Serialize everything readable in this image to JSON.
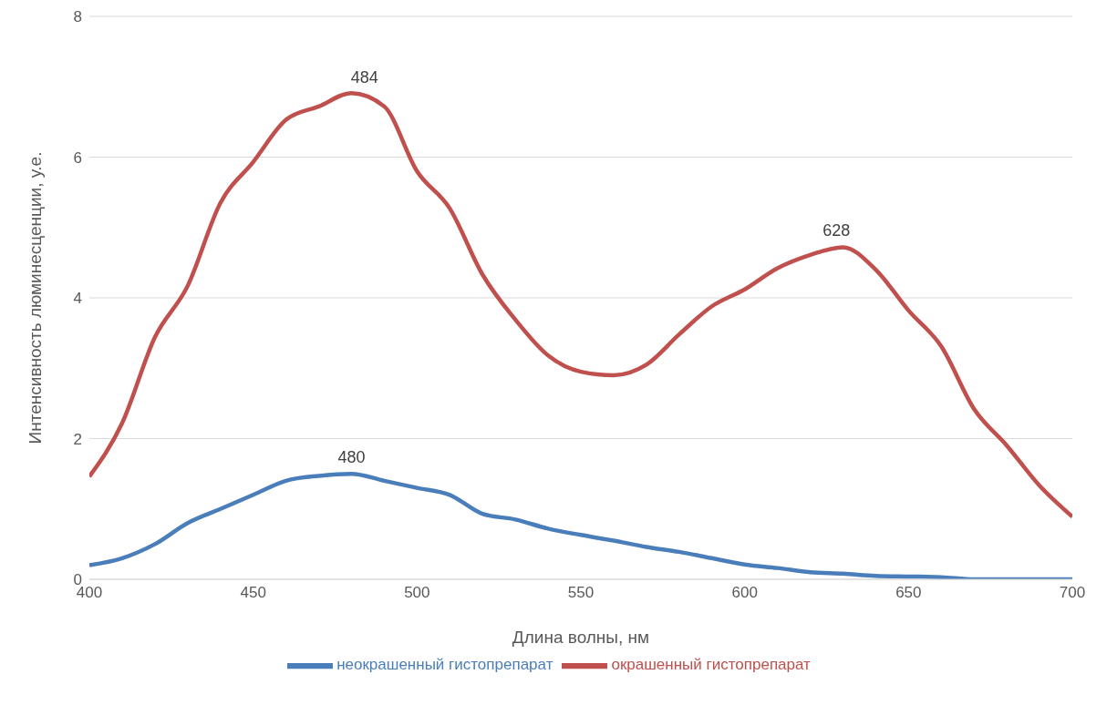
{
  "chart_data": {
    "type": "line",
    "xlabel": "Длина волны, нм",
    "ylabel": "Интенсивность люминесценции, у.е.",
    "x": [
      400,
      410,
      420,
      430,
      440,
      450,
      460,
      470,
      480,
      490,
      500,
      510,
      520,
      530,
      540,
      550,
      560,
      570,
      580,
      590,
      600,
      610,
      620,
      630,
      640,
      650,
      660,
      670,
      680,
      690,
      700
    ],
    "series": [
      {
        "name": "неокрашенный гистопрепарат",
        "color": "#4a7ebb",
        "values": [
          0.2,
          0.3,
          0.5,
          0.8,
          1.0,
          1.2,
          1.4,
          1.47,
          1.5,
          1.4,
          1.3,
          1.2,
          0.93,
          0.85,
          0.72,
          0.63,
          0.55,
          0.46,
          0.39,
          0.3,
          0.21,
          0.16,
          0.1,
          0.08,
          0.05,
          0.04,
          0.03,
          0.0,
          0.0,
          0.0,
          0.0
        ]
      },
      {
        "name": "окрашенный гистопрепарат",
        "color": "#c0504d",
        "values": [
          1.46,
          2.22,
          3.44,
          4.17,
          5.35,
          5.93,
          6.53,
          6.72,
          6.91,
          6.72,
          5.8,
          5.27,
          4.33,
          3.69,
          3.18,
          2.95,
          2.9,
          3.05,
          3.48,
          3.88,
          4.12,
          4.42,
          4.61,
          4.72,
          4.4,
          3.82,
          3.31,
          2.42,
          1.9,
          1.33,
          0.89
        ]
      }
    ],
    "annotations": [
      {
        "text": "484",
        "x": 484,
        "y": 6.9
      },
      {
        "text": "628",
        "x": 628,
        "y": 4.72
      },
      {
        "text": "480",
        "x": 480,
        "y": 1.5
      }
    ],
    "xlim": [
      400,
      700
    ],
    "xticks": [
      400,
      450,
      500,
      550,
      600,
      650,
      700
    ],
    "ylim": [
      0,
      8
    ],
    "yticks": [
      0,
      2,
      4,
      6,
      8
    ],
    "grid": "y",
    "legend": "bottom",
    "marker": "none",
    "line_style": "solid"
  }
}
